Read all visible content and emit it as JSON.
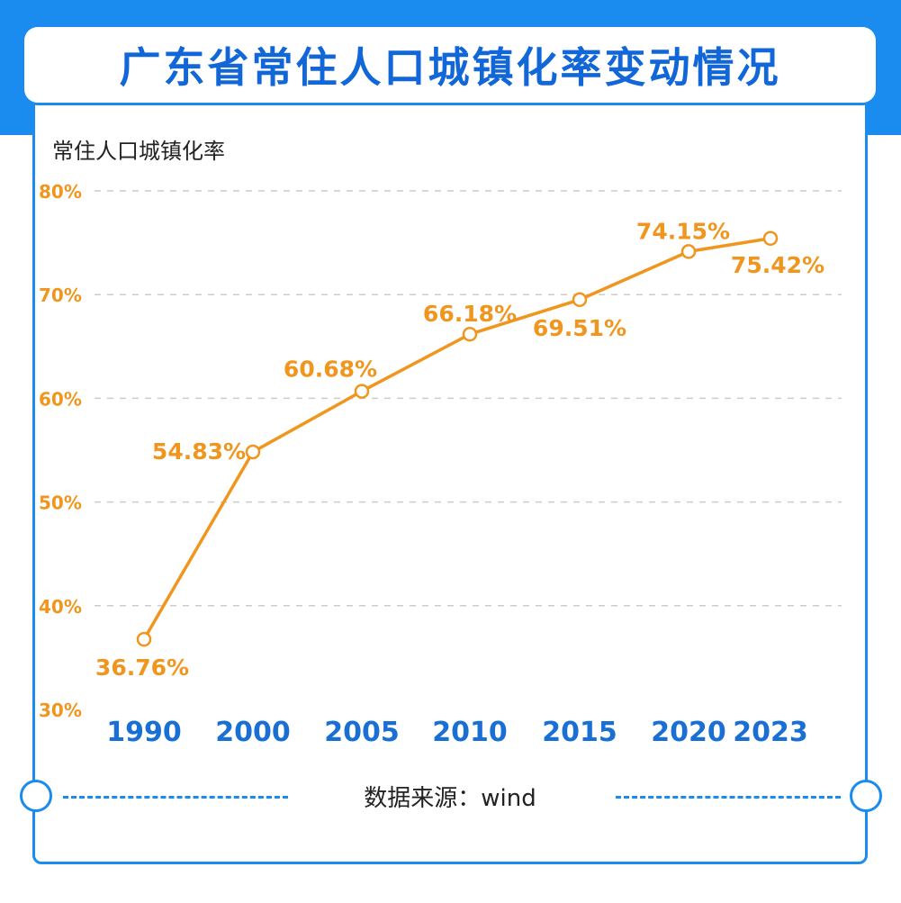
{
  "header": {
    "title": "广东省常住人口城镇化率变动情况"
  },
  "footer": {
    "source": "数据来源：wind"
  },
  "colors": {
    "accent": "#1a8cf0",
    "title": "#1167d8",
    "line": "#f0961e",
    "x_tick": "#1a6fd4"
  },
  "chart_data": {
    "type": "line",
    "title": "",
    "ylabel": "常住人口城镇化率",
    "xlabel": "",
    "categories": [
      "1990",
      "2000",
      "2005",
      "2010",
      "2015",
      "2020",
      "2023"
    ],
    "series": [
      {
        "values": [
          36.76,
          54.83,
          60.68,
          66.18,
          69.51,
          74.15,
          75.42
        ]
      }
    ],
    "data_labels": [
      "36.76%",
      "54.83%",
      "60.68%",
      "66.18%",
      "69.51%",
      "74.15%",
      "75.42%"
    ],
    "y_ticks": [
      "80%",
      "70%",
      "60%",
      "50%",
      "40%",
      "30%"
    ],
    "ylim": [
      30,
      80
    ],
    "grid": true,
    "legend": "none"
  }
}
